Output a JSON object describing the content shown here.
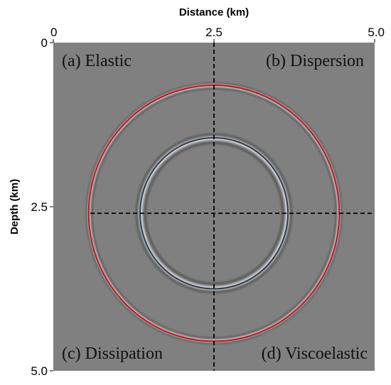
{
  "chart_data": {
    "type": "heatmap",
    "title": "",
    "xlabel": "Distance (km)",
    "ylabel": "Depth (km)",
    "xlim": [
      0,
      5.0
    ],
    "ylim": [
      0,
      5.0
    ],
    "x_axis_position": "top",
    "y_axis_inverted": true,
    "x_ticks": [
      {
        "value": 0,
        "label": "0"
      },
      {
        "value": 2.5,
        "label": "2.5"
      },
      {
        "value": 5.0,
        "label": "5.0"
      }
    ],
    "y_ticks": [
      {
        "value": 0,
        "label": "0"
      },
      {
        "value": 2.5,
        "label": "2.5"
      },
      {
        "value": 5.0,
        "label": "5.0"
      }
    ],
    "background_color": "#808080",
    "source_location": {
      "x": 2.5,
      "depth": 2.6
    },
    "reference_lines": {
      "vertical_x": 2.5,
      "horizontal_depth": 2.6,
      "style": "dashed",
      "color": "#000000"
    },
    "wavefronts": [
      {
        "name": "P-wave front",
        "center_x": 2.5,
        "center_depth": 2.6,
        "radius": 1.95,
        "color": "#c0141c"
      },
      {
        "name": "S-wave front",
        "center_x": 2.5,
        "center_depth": 2.6,
        "radius": 1.15,
        "color": "#2b3a4f"
      }
    ],
    "panel_labels": [
      {
        "id": "a",
        "text": "(a) Elastic",
        "corner": "top-left"
      },
      {
        "id": "b",
        "text": "(b) Dispersion",
        "corner": "top-right"
      },
      {
        "id": "c",
        "text": "(c) Dissipation",
        "corner": "bottom-left"
      },
      {
        "id": "d",
        "text": "(d) Viscoelastic",
        "corner": "bottom-right"
      }
    ]
  }
}
